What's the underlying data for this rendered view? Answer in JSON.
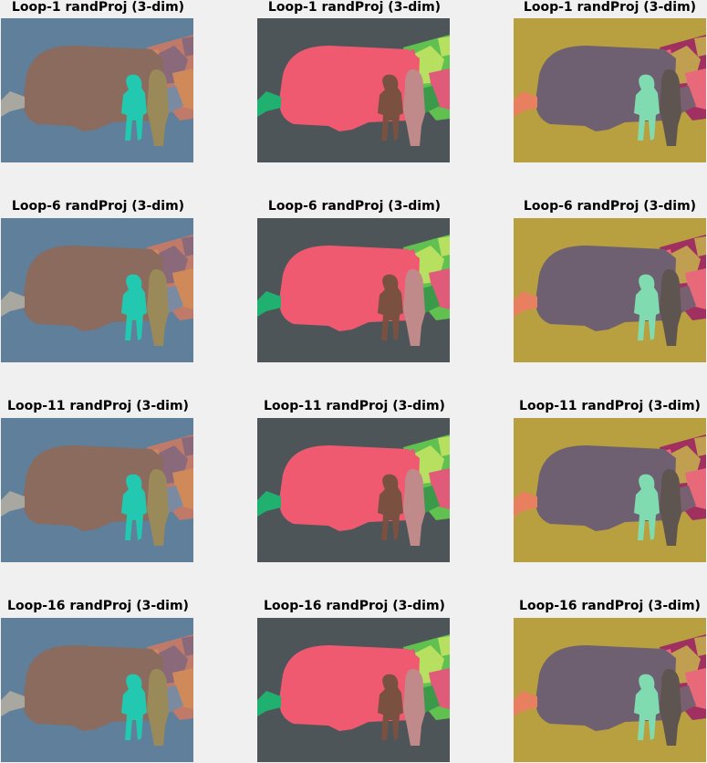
{
  "panels": [
    {
      "title": "Loop-1 randProj (3-dim)",
      "scheme": 0
    },
    {
      "title": "Loop-1 randProj (3-dim)",
      "scheme": 1
    },
    {
      "title": "Loop-1 randProj (3-dim)",
      "scheme": 2
    },
    {
      "title": "Loop-6 randProj (3-dim)",
      "scheme": 0
    },
    {
      "title": "Loop-6 randProj (3-dim)",
      "scheme": 1
    },
    {
      "title": "Loop-6 randProj (3-dim)",
      "scheme": 2
    },
    {
      "title": "Loop-11 randProj (3-dim)",
      "scheme": 0
    },
    {
      "title": "Loop-11 randProj (3-dim)",
      "scheme": 1
    },
    {
      "title": "Loop-11 randProj (3-dim)",
      "scheme": 2
    },
    {
      "title": "Loop-16 randProj (3-dim)",
      "scheme": 0
    },
    {
      "title": "Loop-16 randProj (3-dim)",
      "scheme": 1
    },
    {
      "title": "Loop-16 randProj (3-dim)",
      "scheme": 2
    }
  ],
  "palettes": [
    {
      "background": "#5f7f9a",
      "vehicle": "#8a6b5e",
      "person_a": "#22c8b0",
      "person_b": "#9a8a5a",
      "clutter_a": "#c07a6a",
      "clutter_b": "#8a6a7a",
      "clutter_c": "#d08a5a",
      "clutter_d": "#7a8aa0",
      "left_tip": "#a8a8a0"
    },
    {
      "background": "#4e5558",
      "vehicle": "#f05a70",
      "person_a": "#7a5040",
      "person_b": "#c08a8a",
      "clutter_a": "#60c050",
      "clutter_b": "#b8e060",
      "clutter_c": "#e05a7a",
      "clutter_d": "#3a9a4a",
      "left_tip": "#20b070"
    },
    {
      "background": "#b8a040",
      "vehicle": "#6e6070",
      "person_a": "#80dcb0",
      "person_b": "#5e5450",
      "clutter_a": "#a03060",
      "clutter_b": "#c0a050",
      "clutter_c": "#e86a7a",
      "clutter_d": "#786070",
      "left_tip": "#e88060"
    }
  ]
}
